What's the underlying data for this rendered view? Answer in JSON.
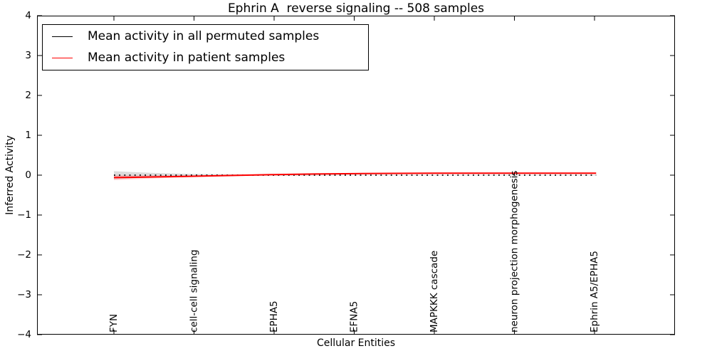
{
  "figure": {
    "title": "Ephrin A  reverse signaling -- 508 samples",
    "xlabel": "Cellular Entities",
    "ylabel": "Inferred Activity"
  },
  "legend": {
    "items": [
      {
        "label": "Mean activity in all permuted samples",
        "color": "#000000"
      },
      {
        "label": "Mean activity in patient samples",
        "color": "#ff0000"
      }
    ]
  },
  "chart_data": {
    "type": "line",
    "title": "Ephrin A  reverse signaling -- 508 samples",
    "xlabel": "Cellular Entities",
    "ylabel": "Inferred Activity",
    "ylim": [
      -4,
      4
    ],
    "ytick_values": [
      4,
      3,
      2,
      1,
      0,
      -1,
      -2,
      -3,
      -4
    ],
    "ytick_labels": [
      "4",
      "3",
      "2",
      "1",
      "0",
      "−1",
      "−2",
      "−3",
      "−4"
    ],
    "x_tick_labels": [
      "FYN",
      "cell-cell signaling",
      "EPHA5",
      "EFNA5",
      "MAPKKK cascade",
      "neuron projection morphogenesis",
      "Ephrin A5/EPHA5"
    ],
    "grid": false,
    "legend_position": "upper-left",
    "series": [
      {
        "name": "Mean activity in all permuted samples",
        "color": "#000000",
        "line_style": "dotted",
        "x": [
          0,
          0.25,
          0.5,
          0.75,
          1,
          1.5,
          2,
          2.5,
          3,
          3.5,
          4,
          4.5,
          5,
          5.5,
          6.02
        ],
        "y": [
          0,
          0,
          0,
          0,
          0,
          0,
          0,
          0,
          0,
          0,
          0,
          0,
          0,
          0,
          0
        ],
        "band": {
          "color": "rgba(130,130,130,0.28)",
          "hi": [
            0.1,
            0.075,
            0.055,
            0.042,
            0.032,
            0.02,
            0.014,
            0.011,
            0.01,
            0.01,
            0.01,
            0.01,
            0.01,
            0.01,
            0.01
          ],
          "lo": [
            -0.1,
            -0.075,
            -0.055,
            -0.042,
            -0.032,
            -0.02,
            -0.014,
            -0.011,
            -0.01,
            -0.01,
            -0.01,
            -0.01,
            -0.01,
            -0.01,
            -0.01
          ]
        }
      },
      {
        "name": "Mean activity in patient samples",
        "color": "#ff0000",
        "line_style": "solid",
        "x": [
          0,
          0.25,
          0.5,
          0.75,
          1,
          1.5,
          2,
          2.5,
          3,
          3.5,
          4,
          4.5,
          5,
          5.5,
          6.02
        ],
        "y": [
          -0.06,
          -0.053,
          -0.045,
          -0.036,
          -0.026,
          -0.006,
          0.014,
          0.028,
          0.038,
          0.045,
          0.048,
          0.05,
          0.05,
          0.05,
          0.05
        ],
        "band": {
          "color": "rgba(255,80,80,0.25)",
          "hi": [
            0.005,
            -0.003,
            -0.007,
            -0.008,
            -0.006,
            0.006,
            0.022,
            0.034,
            0.043,
            0.05,
            0.053,
            0.055,
            0.055,
            0.055,
            0.055
          ],
          "lo": [
            -0.125,
            -0.103,
            -0.083,
            -0.064,
            -0.046,
            -0.018,
            0.006,
            0.022,
            0.033,
            0.04,
            0.043,
            0.045,
            0.045,
            0.045,
            0.045
          ]
        }
      }
    ]
  }
}
